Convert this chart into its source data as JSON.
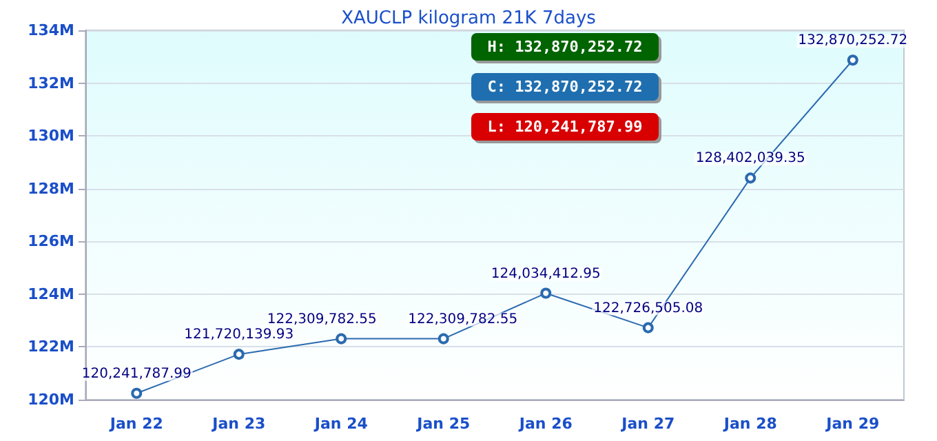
{
  "chart_data": {
    "type": "line",
    "title": "XAUCLP kilogram 21K 7days",
    "categories": [
      "Jan 22",
      "Jan 23",
      "Jan 24",
      "Jan 25",
      "Jan 26",
      "Jan 27",
      "Jan 28",
      "Jan 29"
    ],
    "series": [
      {
        "color": "#2a6ab0",
        "values": [
          120241787.99,
          121720139.93,
          122309782.55,
          122309782.55,
          124034412.95,
          122726505.08,
          128402039.35,
          132870252.72
        ],
        "value_labels": [
          "120,241,787.99",
          "121,720,139.93",
          "122,309,782.55",
          "122,309,782.55",
          "124,034,412.95",
          "122,726,505.08",
          "128,402,039.35",
          "132,870,252.72"
        ]
      }
    ],
    "ylim": [
      120000000,
      134000000
    ],
    "yticks": [
      {
        "value": 120000000,
        "label": "120M"
      },
      {
        "value": 122000000,
        "label": "122M"
      },
      {
        "value": 124000000,
        "label": "124M"
      },
      {
        "value": 126000000,
        "label": "126M"
      },
      {
        "value": 128000000,
        "label": "128M"
      },
      {
        "value": 130000000,
        "label": "130M"
      },
      {
        "value": 132000000,
        "label": "132M"
      },
      {
        "value": 134000000,
        "label": "134M"
      }
    ],
    "annotations": [
      "H: 132,870,252.72",
      "C: 132,870,252.72",
      "L: 120,241,787.99"
    ],
    "grid": "y",
    "marker": "circle",
    "line_style": "solid"
  }
}
